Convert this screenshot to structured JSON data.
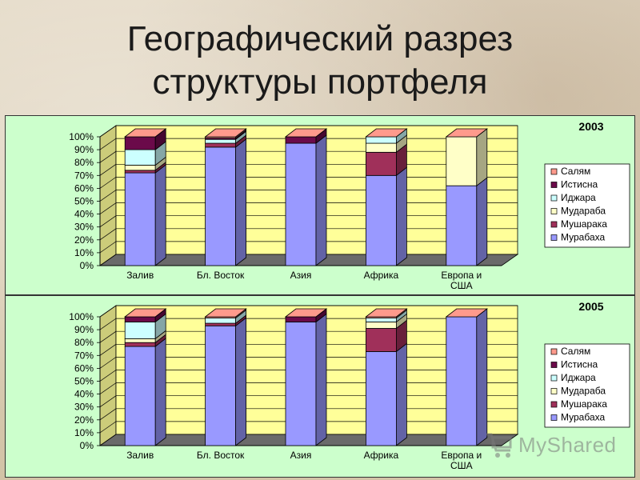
{
  "slide": {
    "title_line1": "Географический разрез",
    "title_line2": "структуры портфеля",
    "watermark_text": "MyShared"
  },
  "colors": {
    "Салям": "#ff9a8c",
    "Истисна": "#6b0a4a",
    "Иджара": "#ccffff",
    "Мудараба": "#ffffc8",
    "Мушарака": "#a0305a",
    "Мурабаха": "#9999ff",
    "plot_bg": "#ffff99",
    "floor": "#6a6a6a",
    "panel_bg": "#ccffcc"
  },
  "chart_data": [
    {
      "type": "bar",
      "stacked": true,
      "percent": true,
      "three_d": true,
      "title": "2003",
      "categories": [
        "Залив",
        "Бл. Восток",
        "Азия",
        "Африка",
        "Европа и США"
      ],
      "ytick_labels": [
        "0%",
        "10%",
        "20%",
        "30%",
        "40%",
        "50%",
        "60%",
        "70%",
        "80%",
        "90%",
        "100%"
      ],
      "ylim": [
        0,
        100
      ],
      "grid": true,
      "legend_position": "right",
      "series": [
        {
          "name": "Мурабаха",
          "values": [
            72,
            92,
            95,
            70,
            62
          ]
        },
        {
          "name": "Мушарака",
          "values": [
            2,
            3,
            0,
            18,
            0
          ]
        },
        {
          "name": "Мудараба",
          "values": [
            4,
            0,
            0,
            7,
            38
          ]
        },
        {
          "name": "Иджара",
          "values": [
            12,
            3,
            0,
            5,
            0
          ]
        },
        {
          "name": "Истисна",
          "values": [
            10,
            1,
            5,
            0,
            0
          ]
        },
        {
          "name": "Салям",
          "values": [
            0,
            1,
            0,
            0,
            0
          ]
        }
      ]
    },
    {
      "type": "bar",
      "stacked": true,
      "percent": true,
      "three_d": true,
      "title": "2005",
      "categories": [
        "Залив",
        "Бл. Восток",
        "Азия",
        "Африка",
        "Европа и США"
      ],
      "ytick_labels": [
        "0%",
        "10%",
        "20%",
        "30%",
        "40%",
        "50%",
        "60%",
        "70%",
        "80%",
        "90%",
        "100%"
      ],
      "ylim": [
        0,
        100
      ],
      "grid": true,
      "legend_position": "right",
      "series": [
        {
          "name": "Мурабаха",
          "values": [
            77,
            93,
            96,
            73,
            100
          ]
        },
        {
          "name": "Мушарака",
          "values": [
            3,
            2,
            0,
            18,
            0
          ]
        },
        {
          "name": "Мудараба",
          "values": [
            3,
            0,
            0,
            5,
            0
          ]
        },
        {
          "name": "Иджара",
          "values": [
            13,
            4,
            0,
            3,
            0
          ]
        },
        {
          "name": "Истисна",
          "values": [
            4,
            0,
            4,
            0,
            0
          ]
        },
        {
          "name": "Салям",
          "values": [
            0,
            1,
            0,
            1,
            0
          ]
        }
      ]
    }
  ]
}
